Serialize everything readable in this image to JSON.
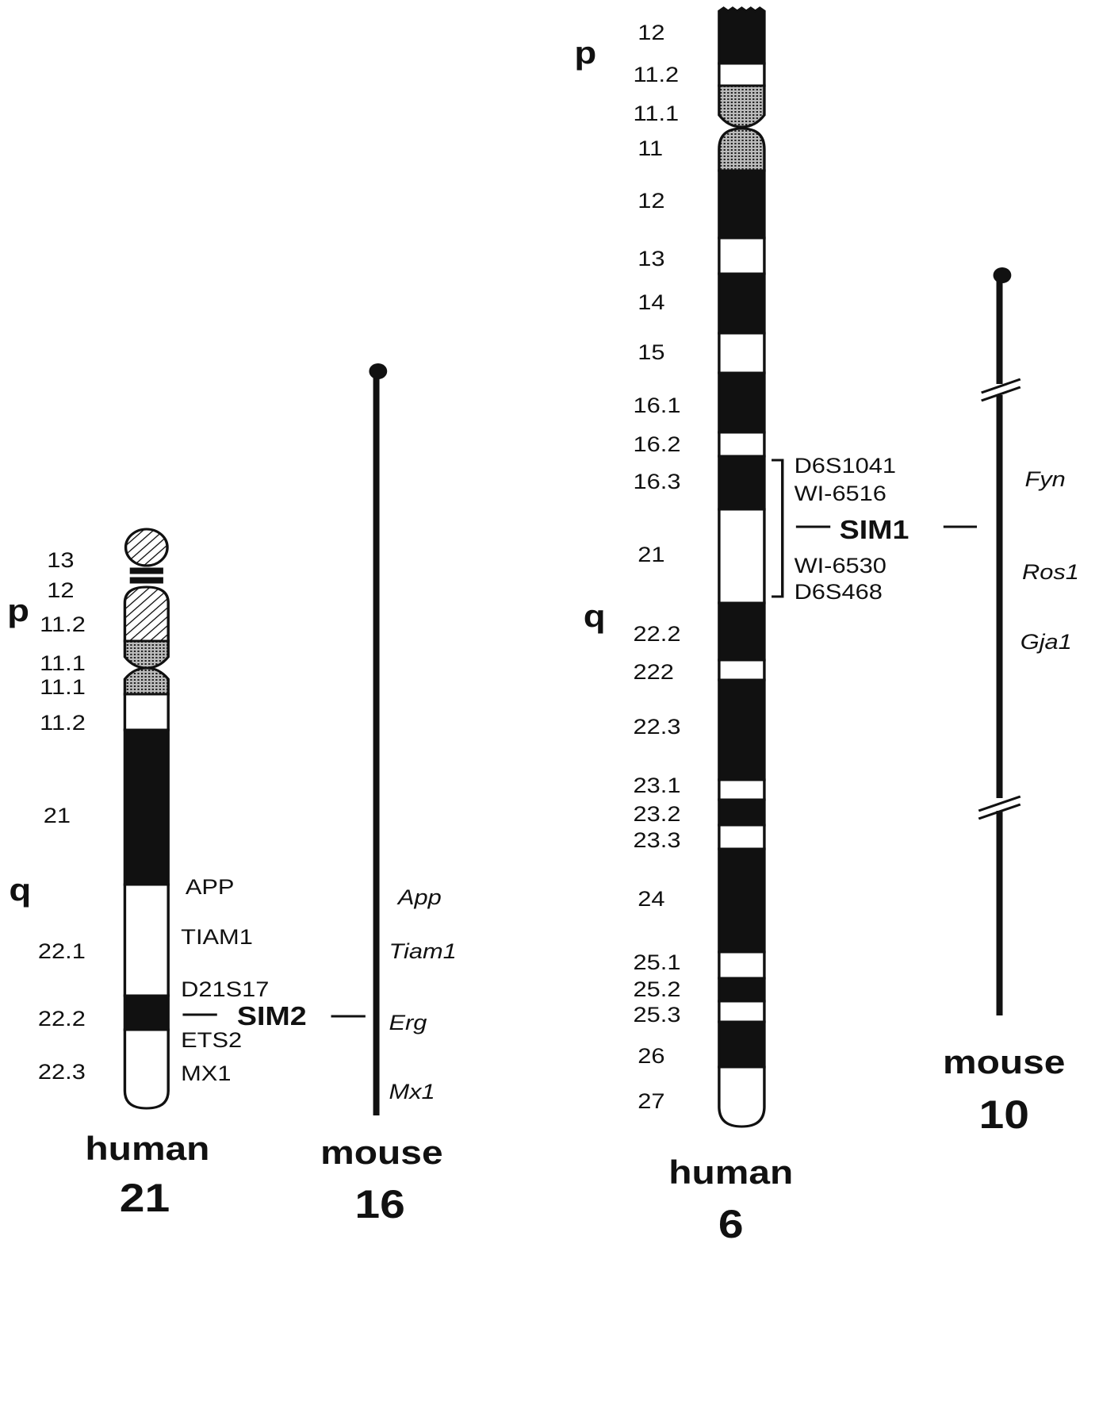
{
  "chr21": {
    "arm_p": "p",
    "arm_q": "q",
    "bands": [
      "13",
      "12",
      "11.2",
      "11.1",
      "11.1",
      "11.2",
      "21",
      "22.1",
      "22.2",
      "22.3"
    ],
    "genes": [
      "APP",
      "TIAM1",
      "D21S17",
      "ETS2",
      "MX1"
    ],
    "locus": "SIM2",
    "label": [
      "human",
      "21"
    ]
  },
  "mouse16": {
    "genes": [
      "App",
      "Tiam1",
      "Erg",
      "Mx1"
    ],
    "label": [
      "mouse",
      "16"
    ]
  },
  "chr6": {
    "arm_p": "p",
    "arm_q": "q",
    "bands": [
      "12",
      "11.2",
      "11.1",
      "11",
      "12",
      "13",
      "14",
      "15",
      "16.1",
      "16.2",
      "16.3",
      "21",
      "22.2",
      "222",
      "22.3",
      "23.1",
      "23.2",
      "23.3",
      "24",
      "25.1",
      "25.2",
      "25.3",
      "26",
      "27"
    ],
    "markers": [
      "D6S1041",
      "WI-6516",
      "WI-6530",
      "D6S468"
    ],
    "locus": "SIM1",
    "label": [
      "human",
      "6"
    ]
  },
  "mouse10": {
    "genes": [
      "Fyn",
      "Ros1",
      "Gja1"
    ],
    "label": [
      "mouse",
      "10"
    ]
  }
}
